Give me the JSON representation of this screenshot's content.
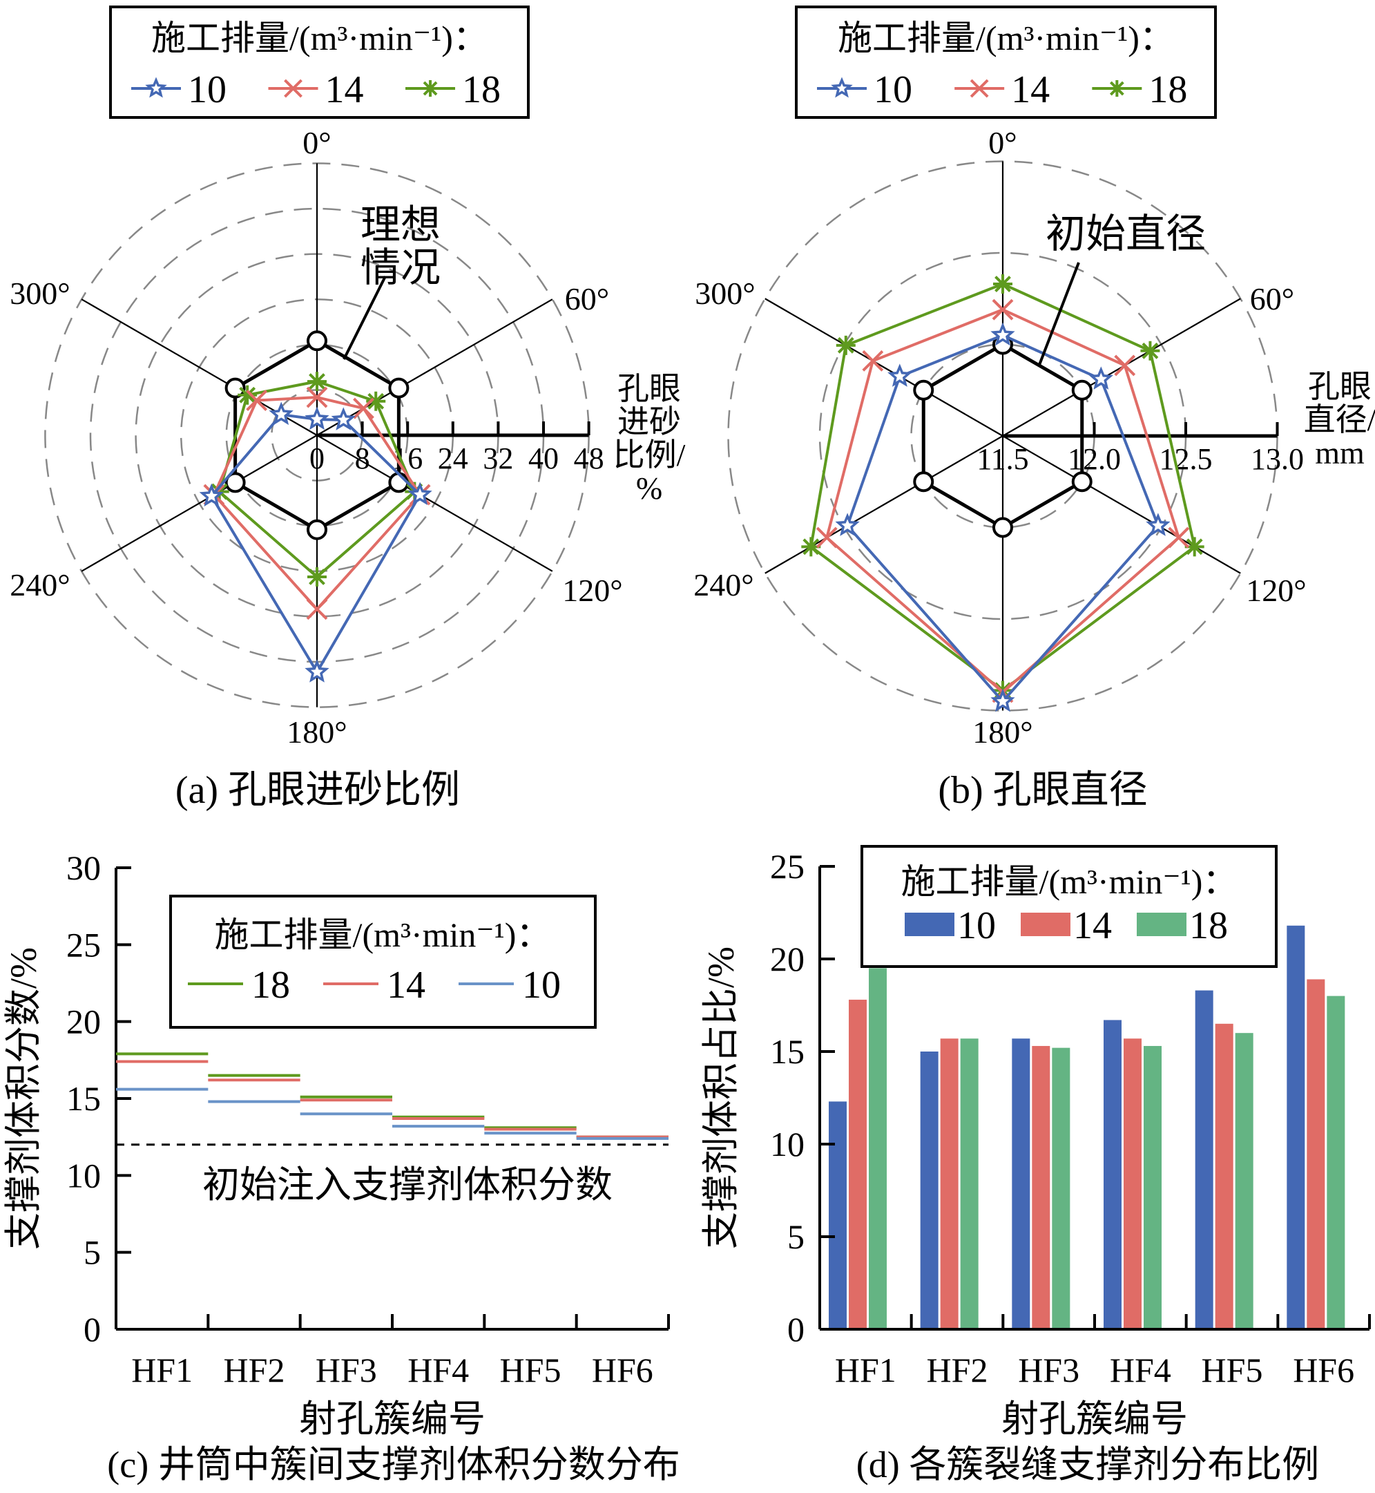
{
  "colors": {
    "q10": "#4468b4",
    "q14": "#e06c66",
    "q18": "#5e9a1e",
    "q10_bar": "#4468b4",
    "q14_bar": "#e06c66",
    "q18_bar": "#64b483",
    "q10_line_c": "#6a93c8",
    "ideal": "#000000",
    "grid": "#888888"
  },
  "chart_data": [
    {
      "id": "a",
      "type": "radar",
      "caption": "(a) 孔眼进砂比例",
      "legend_title": "施工排量/(m³·min⁻¹)：",
      "legend": [
        "10",
        "14",
        "18"
      ],
      "axis_label": [
        "孔眼",
        "进砂",
        "比例/",
        "%"
      ],
      "angles": [
        0,
        60,
        120,
        180,
        240,
        300
      ],
      "angle_labels": [
        "0°",
        "60°",
        "120°",
        "180°",
        "240°",
        "300°"
      ],
      "r_ticks": [
        0,
        8,
        16,
        24,
        32,
        40,
        48
      ],
      "r_tick_labels": [
        "0",
        "8",
        "16",
        "24",
        "32",
        "40",
        "48"
      ],
      "r_range": [
        0,
        48
      ],
      "grid": true,
      "reference": {
        "label": [
          "理想",
          "情况"
        ],
        "values": [
          16.67,
          16.67,
          16.67,
          16.67,
          16.67,
          16.67
        ]
      },
      "series": [
        {
          "name": "10",
          "marker": "star",
          "values": [
            2.8,
            5.4,
            21.0,
            41.8,
            21.5,
            7.3
          ]
        },
        {
          "name": "14",
          "marker": "x",
          "values": [
            6.7,
            9.5,
            21.0,
            30.7,
            21.0,
            12.3
          ]
        },
        {
          "name": "18",
          "marker": "asterisk",
          "values": [
            9.5,
            12.0,
            19.9,
            25.0,
            19.9,
            14.2
          ]
        }
      ]
    },
    {
      "id": "b",
      "type": "radar",
      "caption": "(b) 孔眼直径",
      "legend_title": "施工排量/(m³·min⁻¹)：",
      "legend": [
        "10",
        "14",
        "18"
      ],
      "axis_label": [
        "孔眼",
        "直径/",
        "mm"
      ],
      "angles": [
        0,
        60,
        120,
        180,
        240,
        300
      ],
      "angle_labels": [
        "0°",
        "60°",
        "120°",
        "180°",
        "240°",
        "300°"
      ],
      "r_ticks": [
        11.5,
        12.0,
        12.5,
        13.0
      ],
      "r_tick_labels": [
        "11.5",
        "12.0",
        "12.5",
        "13.0"
      ],
      "r_range": [
        11.5,
        13.0
      ],
      "grid": true,
      "reference": {
        "label": [
          "初始直径"
        ],
        "values": [
          12.0,
          12.0,
          12.0,
          12.0,
          12.0,
          12.0
        ]
      },
      "series": [
        {
          "name": "10",
          "marker": "star",
          "values": [
            12.05,
            12.12,
            12.48,
            12.95,
            12.48,
            12.15
          ]
        },
        {
          "name": "14",
          "marker": "x",
          "values": [
            12.19,
            12.27,
            12.61,
            12.9,
            12.61,
            12.32
          ]
        },
        {
          "name": "18",
          "marker": "asterisk",
          "values": [
            12.33,
            12.43,
            12.71,
            12.89,
            12.71,
            12.49
          ]
        }
      ]
    },
    {
      "id": "c",
      "type": "line",
      "style": "step",
      "caption": "(c) 井筒中簇间支撑剂体积分数分布",
      "legend_title": "施工排量/(m³·min⁻¹)：",
      "legend": [
        "18",
        "14",
        "10"
      ],
      "categories": [
        "HF1",
        "HF2",
        "HF3",
        "HF4",
        "HF5",
        "HF6"
      ],
      "xlabel": "射孔簇编号",
      "ylabel": "支撑剂体积分数/%",
      "ylim": [
        0,
        30
      ],
      "yticks": [
        0,
        5,
        10,
        15,
        20,
        25,
        30
      ],
      "reference": {
        "label": "初始注入支撑剂体积分数",
        "value": 12
      },
      "series": [
        {
          "name": "18",
          "values": [
            17.9,
            16.5,
            15.1,
            13.8,
            13.1,
            12.5
          ]
        },
        {
          "name": "14",
          "values": [
            17.4,
            16.2,
            14.9,
            13.7,
            13.0,
            12.5
          ]
        },
        {
          "name": "10",
          "values": [
            15.6,
            14.8,
            14.0,
            13.2,
            12.75,
            12.4
          ]
        }
      ]
    },
    {
      "id": "d",
      "type": "bar",
      "caption": "(d) 各簇裂缝支撑剂分布比例",
      "legend_title": "施工排量/(m³·min⁻¹)：",
      "legend": [
        "10",
        "14",
        "18"
      ],
      "categories": [
        "HF1",
        "HF2",
        "HF3",
        "HF4",
        "HF5",
        "HF6"
      ],
      "xlabel": "射孔簇编号",
      "ylabel": "支撑剂体积占比/%",
      "ylim": [
        0,
        25
      ],
      "yticks": [
        0,
        5,
        10,
        15,
        20,
        25
      ],
      "series": [
        {
          "name": "10",
          "values": [
            12.3,
            15.0,
            15.7,
            16.7,
            18.3,
            21.8
          ]
        },
        {
          "name": "14",
          "values": [
            17.8,
            15.7,
            15.3,
            15.7,
            16.5,
            18.9
          ]
        },
        {
          "name": "18",
          "values": [
            19.5,
            15.7,
            15.2,
            15.3,
            16.0,
            18.0
          ]
        }
      ]
    }
  ]
}
